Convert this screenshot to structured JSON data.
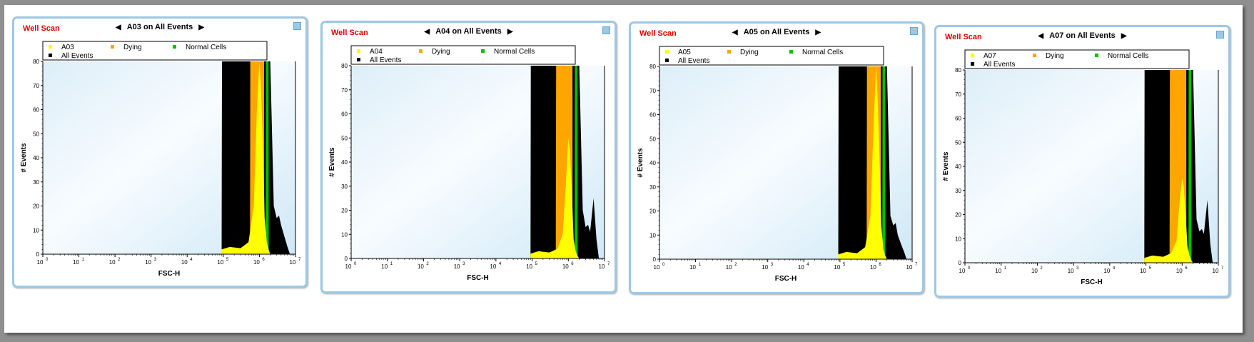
{
  "panels": [
    {
      "well_scan": "Well Scan",
      "title": "A03 on All Events",
      "nav_left": "◀",
      "nav_right": "▶",
      "legend": [
        {
          "label": "A03",
          "color": "#ffff00"
        },
        {
          "label": "Dying",
          "color": "#ffa500"
        },
        {
          "label": "Normal Cells",
          "color": "#00c000"
        },
        {
          "label": "All Events",
          "color": "#000000"
        }
      ],
      "xlabel": "FSC-H",
      "ylabel": "# Events",
      "yticks": [
        "0",
        "10",
        "20",
        "30",
        "40",
        "50",
        "60",
        "70",
        "80"
      ],
      "xticks": [
        "10",
        "10",
        "10",
        "10",
        "10",
        "10",
        "10",
        "10"
      ],
      "xticks_exp": [
        "0",
        "1",
        "2",
        "3",
        "4",
        "5",
        "6",
        "7"
      ]
    },
    {
      "well_scan": "Well Scan",
      "title": "A04 on All Events",
      "nav_left": "◀",
      "nav_right": "▶",
      "legend": [
        {
          "label": "A04",
          "color": "#ffff00"
        },
        {
          "label": "Dying",
          "color": "#ffa500"
        },
        {
          "label": "Normal Cells",
          "color": "#00c000"
        },
        {
          "label": "All Events",
          "color": "#000000"
        }
      ],
      "xlabel": "FSC-H",
      "ylabel": "# Events",
      "yticks": [
        "0",
        "10",
        "20",
        "30",
        "40",
        "50",
        "60",
        "70",
        "80"
      ],
      "xticks": [
        "10",
        "10",
        "10",
        "10",
        "10",
        "10",
        "10",
        "10"
      ],
      "xticks_exp": [
        "0",
        "1",
        "2",
        "3",
        "4",
        "5",
        "6",
        "7"
      ]
    },
    {
      "well_scan": "Well Scan",
      "title": "A05 on All Events",
      "nav_left": "◀",
      "nav_right": "▶",
      "legend": [
        {
          "label": "A05",
          "color": "#ffff00"
        },
        {
          "label": "Dying",
          "color": "#ffa500"
        },
        {
          "label": "Normal Cells",
          "color": "#00c000"
        },
        {
          "label": "All Events",
          "color": "#000000"
        }
      ],
      "xlabel": "FSC-H",
      "ylabel": "# Events",
      "yticks": [
        "0",
        "10",
        "20",
        "30",
        "40",
        "50",
        "60",
        "70",
        "80"
      ],
      "xticks": [
        "10",
        "10",
        "10",
        "10",
        "10",
        "10",
        "10",
        "10"
      ],
      "xticks_exp": [
        "0",
        "1",
        "2",
        "3",
        "4",
        "5",
        "6",
        "7"
      ]
    },
    {
      "well_scan": "Well Scan",
      "title": "A07 on All Events",
      "nav_left": "◀",
      "nav_right": "▶",
      "legend": [
        {
          "label": "A07",
          "color": "#ffff00"
        },
        {
          "label": "Dying",
          "color": "#ffa500"
        },
        {
          "label": "Normal Cells",
          "color": "#00c000"
        },
        {
          "label": "All Events",
          "color": "#000000"
        }
      ],
      "xlabel": "FSC-H",
      "ylabel": "# Events",
      "yticks": [
        "0",
        "10",
        "20",
        "30",
        "40",
        "50",
        "60",
        "70",
        "80"
      ],
      "xticks": [
        "10",
        "10",
        "10",
        "10",
        "10",
        "10",
        "10",
        "10"
      ],
      "xticks_exp": [
        "0",
        "1",
        "2",
        "3",
        "4",
        "5",
        "6",
        "7"
      ]
    }
  ],
  "chart_data": [
    {
      "type": "area",
      "title": "A03 on All Events",
      "xlabel": "FSC-H",
      "ylabel": "# Events",
      "xscale": "log",
      "xlim": [
        1,
        10000000
      ],
      "ylim": [
        0,
        80
      ],
      "series": [
        {
          "name": "All Events",
          "color": "#000000",
          "x": [
            90000,
            92000,
            200000,
            500000,
            1000000,
            1500000,
            2000000,
            2500000,
            3000000,
            3500000,
            4000000,
            5000000,
            6000000,
            7000000
          ],
          "y": [
            0,
            80,
            80,
            80,
            80,
            80,
            80,
            20,
            15,
            16,
            12,
            7,
            3,
            0
          ]
        },
        {
          "name": "Dying",
          "color": "#ffa500",
          "x": [
            550000,
            560000,
            1000000,
            1350000,
            1360000
          ],
          "y": [
            0,
            80,
            80,
            80,
            0
          ]
        },
        {
          "name": "Normal Cells",
          "color": "#00c000",
          "x": [
            1500000,
            1510000,
            1800000,
            1810000
          ],
          "y": [
            0,
            80,
            80,
            0
          ]
        },
        {
          "name": "A03",
          "color": "#ffff00",
          "x": [
            90000,
            150000,
            300000,
            500000,
            700000,
            850000,
            1000000,
            1100000,
            1250000,
            1400000,
            1600000,
            1800000,
            2000000
          ],
          "y": [
            2,
            3,
            2.5,
            5,
            20,
            60,
            80,
            70,
            45,
            15,
            5,
            2,
            0
          ]
        }
      ]
    },
    {
      "type": "area",
      "title": "A04 on All Events",
      "xlabel": "FSC-H",
      "ylabel": "# Events",
      "xscale": "log",
      "xlim": [
        1,
        10000000
      ],
      "ylim": [
        0,
        80
      ],
      "series": [
        {
          "name": "All Events",
          "color": "#000000",
          "x": [
            90000,
            92000,
            200000,
            500000,
            1000000,
            1500000,
            2000000,
            2500000,
            3000000,
            3500000,
            4000000,
            5000000,
            6000000,
            7000000
          ],
          "y": [
            0,
            80,
            80,
            80,
            80,
            80,
            80,
            20,
            13,
            14,
            11,
            25,
            8,
            0
          ]
        },
        {
          "name": "Dying",
          "color": "#ffa500",
          "x": [
            450000,
            460000,
            1300000,
            1310000
          ],
          "y": [
            0,
            80,
            80,
            0
          ]
        },
        {
          "name": "Normal Cells",
          "color": "#00c000",
          "x": [
            1500000,
            1510000,
            1800000,
            1810000
          ],
          "y": [
            0,
            80,
            80,
            0
          ]
        },
        {
          "name": "A04",
          "color": "#ffff00",
          "x": [
            90000,
            150000,
            300000,
            500000,
            700000,
            850000,
            1000000,
            1100000,
            1250000,
            1400000,
            1600000,
            1800000,
            2000000
          ],
          "y": [
            2,
            3,
            2.5,
            4,
            10,
            30,
            50,
            45,
            28,
            8,
            3,
            1,
            0
          ]
        }
      ]
    },
    {
      "type": "area",
      "title": "A05 on All Events",
      "xlabel": "FSC-H",
      "ylabel": "# Events",
      "xscale": "log",
      "xlim": [
        1,
        10000000
      ],
      "ylim": [
        0,
        80
      ],
      "series": [
        {
          "name": "All Events",
          "color": "#000000",
          "x": [
            90000,
            92000,
            200000,
            500000,
            1000000,
            1500000,
            2000000,
            2500000,
            3000000,
            3500000,
            4000000,
            5000000,
            6000000,
            7000000
          ],
          "y": [
            0,
            80,
            80,
            80,
            80,
            80,
            80,
            18,
            14,
            15,
            10,
            6,
            3,
            0
          ]
        },
        {
          "name": "Dying",
          "color": "#ffa500",
          "x": [
            550000,
            560000,
            1350000,
            1360000
          ],
          "y": [
            0,
            80,
            80,
            0
          ]
        },
        {
          "name": "Normal Cells",
          "color": "#00c000",
          "x": [
            1500000,
            1510000,
            1800000,
            1810000
          ],
          "y": [
            0,
            80,
            80,
            0
          ]
        },
        {
          "name": "A05",
          "color": "#ffff00",
          "x": [
            90000,
            150000,
            300000,
            500000,
            700000,
            850000,
            1000000,
            1100000,
            1250000,
            1400000,
            1600000,
            1800000,
            2000000
          ],
          "y": [
            2,
            3,
            2.5,
            5,
            18,
            55,
            80,
            68,
            42,
            14,
            4,
            1.5,
            0
          ]
        }
      ]
    },
    {
      "type": "area",
      "title": "A07 on All Events",
      "xlabel": "FSC-H",
      "ylabel": "# Events",
      "xscale": "log",
      "xlim": [
        1,
        10000000
      ],
      "ylim": [
        0,
        80
      ],
      "series": [
        {
          "name": "All Events",
          "color": "#000000",
          "x": [
            90000,
            92000,
            200000,
            500000,
            1000000,
            1500000,
            2000000,
            2500000,
            3000000,
            3500000,
            4000000,
            5000000,
            6000000,
            7000000
          ],
          "y": [
            0,
            80,
            80,
            80,
            80,
            80,
            80,
            18,
            13,
            14,
            12,
            26,
            8,
            0
          ]
        },
        {
          "name": "Dying",
          "color": "#ffa500",
          "x": [
            450000,
            460000,
            1300000,
            1310000
          ],
          "y": [
            0,
            80,
            80,
            0
          ]
        },
        {
          "name": "Normal Cells",
          "color": "#00c000",
          "x": [
            1500000,
            1510000,
            1800000,
            1810000
          ],
          "y": [
            0,
            80,
            80,
            0
          ]
        },
        {
          "name": "A07",
          "color": "#ffff00",
          "x": [
            90000,
            150000,
            300000,
            500000,
            700000,
            850000,
            1000000,
            1100000,
            1250000,
            1400000,
            1600000,
            1800000,
            2000000
          ],
          "y": [
            2,
            3,
            2.5,
            4,
            9,
            25,
            35,
            32,
            20,
            7,
            3,
            1,
            0
          ]
        }
      ]
    }
  ]
}
